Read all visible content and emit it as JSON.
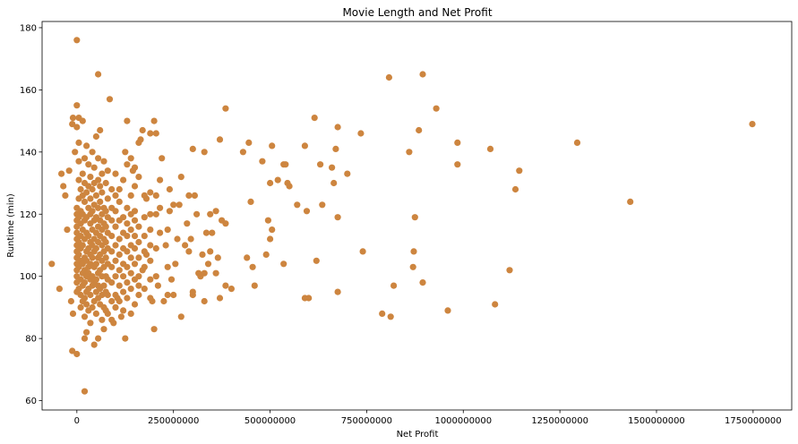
{
  "chart_data": {
    "type": "scatter",
    "title": "Movie Length and Net Profit",
    "xlabel": "Net Profit",
    "ylabel": "Runtime (min)",
    "xlim": [
      -90000000,
      1850000000
    ],
    "ylim": [
      57,
      182
    ],
    "xticks": [
      0,
      250000000,
      500000000,
      750000000,
      1000000000,
      1250000000,
      1500000000,
      1750000000
    ],
    "xtick_labels": [
      "0",
      "250000000",
      "500000000",
      "750000000",
      "1000000000",
      "1250000000",
      "1500000000",
      "1750000000"
    ],
    "yticks": [
      60,
      80,
      100,
      120,
      140,
      160,
      180
    ],
    "ytick_labels": [
      "60",
      "80",
      "100",
      "120",
      "140",
      "160",
      "180"
    ],
    "marker_color": "#cd853f",
    "grid": false,
    "points": [
      [
        0,
        176
      ],
      [
        55000000,
        165
      ],
      [
        85000000,
        157
      ],
      [
        0,
        155
      ],
      [
        -10000000,
        151
      ],
      [
        5000000,
        151
      ],
      [
        15000000,
        150
      ],
      [
        -12000000,
        149
      ],
      [
        0,
        148
      ],
      [
        130000000,
        150
      ],
      [
        200000000,
        150
      ],
      [
        170000000,
        147
      ],
      [
        190000000,
        146
      ],
      [
        205000000,
        146
      ],
      [
        160000000,
        143
      ],
      [
        165000000,
        144
      ],
      [
        130000000,
        136
      ],
      [
        145000000,
        134
      ],
      [
        150000000,
        135
      ],
      [
        100000000,
        133
      ],
      [
        90000000,
        128
      ],
      [
        110000000,
        128
      ],
      [
        125000000,
        140
      ],
      [
        140000000,
        138
      ],
      [
        120000000,
        131
      ],
      [
        180000000,
        125
      ],
      [
        220000000,
        138
      ],
      [
        215000000,
        131
      ],
      [
        240000000,
        128
      ],
      [
        250000000,
        123
      ],
      [
        270000000,
        132
      ],
      [
        300000000,
        141
      ],
      [
        330000000,
        140
      ],
      [
        370000000,
        144
      ],
      [
        385000000,
        154
      ],
      [
        290000000,
        126
      ],
      [
        305000000,
        126
      ],
      [
        310000000,
        120
      ],
      [
        345000000,
        120
      ],
      [
        335000000,
        114
      ],
      [
        360000000,
        121
      ],
      [
        375000000,
        118
      ],
      [
        385000000,
        117
      ],
      [
        430000000,
        140
      ],
      [
        445000000,
        143
      ],
      [
        450000000,
        124
      ],
      [
        480000000,
        137
      ],
      [
        500000000,
        130
      ],
      [
        505000000,
        142
      ],
      [
        520000000,
        131
      ],
      [
        535000000,
        136
      ],
      [
        540000000,
        136
      ],
      [
        545000000,
        130
      ],
      [
        550000000,
        129
      ],
      [
        570000000,
        123
      ],
      [
        590000000,
        142
      ],
      [
        595000000,
        121
      ],
      [
        615000000,
        151
      ],
      [
        630000000,
        136
      ],
      [
        635000000,
        123
      ],
      [
        660000000,
        135
      ],
      [
        665000000,
        130
      ],
      [
        670000000,
        141
      ],
      [
        675000000,
        148
      ],
      [
        700000000,
        133
      ],
      [
        735000000,
        146
      ],
      [
        860000000,
        140
      ],
      [
        885000000,
        147
      ],
      [
        930000000,
        154
      ],
      [
        895000000,
        165
      ],
      [
        808000000,
        164
      ],
      [
        985000000,
        143
      ],
      [
        985000000,
        136
      ],
      [
        1070000000,
        141
      ],
      [
        1295000000,
        143
      ],
      [
        1135000000,
        128
      ],
      [
        1145000000,
        134
      ],
      [
        1432000000,
        124
      ],
      [
        1748000000,
        149
      ],
      [
        1120000000,
        102
      ],
      [
        1082000000,
        91
      ],
      [
        960000000,
        89
      ],
      [
        895000000,
        98
      ],
      [
        872000000,
        108
      ],
      [
        870000000,
        103
      ],
      [
        875000000,
        119
      ],
      [
        820000000,
        97
      ],
      [
        812000000,
        87
      ],
      [
        790000000,
        88
      ],
      [
        740000000,
        108
      ],
      [
        675000000,
        95
      ],
      [
        675000000,
        119
      ],
      [
        620000000,
        105
      ],
      [
        600000000,
        93
      ],
      [
        590000000,
        93
      ],
      [
        535000000,
        104
      ],
      [
        500000000,
        112
      ],
      [
        505000000,
        115
      ],
      [
        495000000,
        118
      ],
      [
        490000000,
        107
      ],
      [
        460000000,
        97
      ],
      [
        455000000,
        103
      ],
      [
        440000000,
        106
      ],
      [
        400000000,
        96
      ],
      [
        385000000,
        97
      ],
      [
        370000000,
        93
      ],
      [
        360000000,
        101
      ],
      [
        365000000,
        106
      ],
      [
        345000000,
        108
      ],
      [
        330000000,
        101
      ],
      [
        330000000,
        92
      ],
      [
        320000000,
        100
      ],
      [
        300000000,
        94
      ],
      [
        300000000,
        95
      ],
      [
        290000000,
        108
      ],
      [
        280000000,
        110
      ],
      [
        270000000,
        87
      ],
      [
        250000000,
        94
      ],
      [
        245000000,
        99
      ],
      [
        235000000,
        94
      ],
      [
        230000000,
        110
      ],
      [
        225000000,
        92
      ],
      [
        210000000,
        97
      ],
      [
        200000000,
        83
      ],
      [
        195000000,
        92
      ],
      [
        190000000,
        105
      ],
      [
        180000000,
        107
      ],
      [
        170000000,
        102
      ],
      [
        160000000,
        97
      ],
      [
        150000000,
        104
      ],
      [
        140000000,
        88
      ],
      [
        125000000,
        80
      ],
      [
        115000000,
        87
      ],
      [
        105000000,
        93
      ],
      [
        95000000,
        85
      ],
      [
        80000000,
        88
      ],
      [
        70000000,
        83
      ],
      [
        55000000,
        80
      ],
      [
        45000000,
        78
      ],
      [
        35000000,
        85
      ],
      [
        25000000,
        82
      ],
      [
        20000000,
        80
      ],
      [
        -12000000,
        76
      ],
      [
        0,
        75
      ],
      [
        20000000,
        63
      ],
      [
        -65000000,
        104
      ],
      [
        -45000000,
        96
      ],
      [
        -40000000,
        133
      ],
      [
        -35000000,
        129
      ],
      [
        -30000000,
        126
      ],
      [
        -25000000,
        115
      ],
      [
        -20000000,
        134
      ],
      [
        -15000000,
        92
      ],
      [
        -10000000,
        88
      ],
      [
        -5000000,
        140
      ],
      [
        0,
        95
      ],
      [
        0,
        98
      ],
      [
        0,
        100
      ],
      [
        0,
        102
      ],
      [
        0,
        104
      ],
      [
        0,
        106
      ],
      [
        0,
        108
      ],
      [
        0,
        110
      ],
      [
        0,
        112
      ],
      [
        0,
        114
      ],
      [
        0,
        116
      ],
      [
        0,
        118
      ],
      [
        0,
        120
      ],
      [
        0,
        122
      ],
      [
        5000000,
        96
      ],
      [
        5000000,
        103
      ],
      [
        5000000,
        107
      ],
      [
        5000000,
        111
      ],
      [
        5000000,
        119
      ],
      [
        5000000,
        125
      ],
      [
        5000000,
        131
      ],
      [
        5000000,
        137
      ],
      [
        5000000,
        143
      ],
      [
        10000000,
        90
      ],
      [
        10000000,
        94
      ],
      [
        10000000,
        99
      ],
      [
        10000000,
        105
      ],
      [
        10000000,
        109
      ],
      [
        10000000,
        113
      ],
      [
        10000000,
        117
      ],
      [
        10000000,
        121
      ],
      [
        10000000,
        128
      ],
      [
        15000000,
        92
      ],
      [
        15000000,
        97
      ],
      [
        15000000,
        101
      ],
      [
        15000000,
        104
      ],
      [
        15000000,
        110
      ],
      [
        15000000,
        115
      ],
      [
        15000000,
        120
      ],
      [
        15000000,
        126
      ],
      [
        15000000,
        133
      ],
      [
        20000000,
        87
      ],
      [
        20000000,
        93
      ],
      [
        20000000,
        98
      ],
      [
        20000000,
        102
      ],
      [
        20000000,
        106
      ],
      [
        20000000,
        112
      ],
      [
        20000000,
        118
      ],
      [
        20000000,
        124
      ],
      [
        20000000,
        130
      ],
      [
        20000000,
        138
      ],
      [
        25000000,
        91
      ],
      [
        25000000,
        95
      ],
      [
        25000000,
        100
      ],
      [
        25000000,
        105
      ],
      [
        25000000,
        108
      ],
      [
        25000000,
        114
      ],
      [
        25000000,
        119
      ],
      [
        25000000,
        127
      ],
      [
        25000000,
        142
      ],
      [
        30000000,
        89
      ],
      [
        30000000,
        96
      ],
      [
        30000000,
        101
      ],
      [
        30000000,
        103
      ],
      [
        30000000,
        109
      ],
      [
        30000000,
        113
      ],
      [
        30000000,
        122
      ],
      [
        30000000,
        129
      ],
      [
        30000000,
        136
      ],
      [
        35000000,
        94
      ],
      [
        35000000,
        99
      ],
      [
        35000000,
        104
      ],
      [
        35000000,
        107
      ],
      [
        35000000,
        111
      ],
      [
        35000000,
        117
      ],
      [
        35000000,
        120
      ],
      [
        35000000,
        125
      ],
      [
        35000000,
        132
      ],
      [
        40000000,
        90
      ],
      [
        40000000,
        97
      ],
      [
        40000000,
        100
      ],
      [
        40000000,
        106
      ],
      [
        40000000,
        110
      ],
      [
        40000000,
        115
      ],
      [
        40000000,
        121
      ],
      [
        40000000,
        128
      ],
      [
        40000000,
        140
      ],
      [
        45000000,
        92
      ],
      [
        45000000,
        98
      ],
      [
        45000000,
        103
      ],
      [
        45000000,
        108
      ],
      [
        45000000,
        112
      ],
      [
        45000000,
        118
      ],
      [
        45000000,
        123
      ],
      [
        45000000,
        130
      ],
      [
        45000000,
        135
      ],
      [
        50000000,
        88
      ],
      [
        50000000,
        95
      ],
      [
        50000000,
        99
      ],
      [
        50000000,
        104
      ],
      [
        50000000,
        109
      ],
      [
        50000000,
        114
      ],
      [
        50000000,
        119
      ],
      [
        50000000,
        126
      ],
      [
        50000000,
        145
      ],
      [
        55000000,
        93
      ],
      [
        55000000,
        97
      ],
      [
        55000000,
        101
      ],
      [
        55000000,
        106
      ],
      [
        55000000,
        111
      ],
      [
        55000000,
        116
      ],
      [
        55000000,
        122
      ],
      [
        55000000,
        131
      ],
      [
        55000000,
        138
      ],
      [
        60000000,
        91
      ],
      [
        60000000,
        96
      ],
      [
        60000000,
        102
      ],
      [
        60000000,
        107
      ],
      [
        60000000,
        113
      ],
      [
        60000000,
        118
      ],
      [
        60000000,
        124
      ],
      [
        60000000,
        129
      ],
      [
        60000000,
        147
      ],
      [
        65000000,
        86
      ],
      [
        65000000,
        94
      ],
      [
        65000000,
        100
      ],
      [
        65000000,
        105
      ],
      [
        65000000,
        110
      ],
      [
        65000000,
        115
      ],
      [
        65000000,
        120
      ],
      [
        65000000,
        127
      ],
      [
        65000000,
        133
      ],
      [
        70000000,
        90
      ],
      [
        70000000,
        97
      ],
      [
        70000000,
        103
      ],
      [
        70000000,
        108
      ],
      [
        70000000,
        112
      ],
      [
        70000000,
        117
      ],
      [
        70000000,
        122
      ],
      [
        70000000,
        137
      ],
      [
        75000000,
        89
      ],
      [
        75000000,
        95
      ],
      [
        75000000,
        100
      ],
      [
        75000000,
        106
      ],
      [
        75000000,
        111
      ],
      [
        75000000,
        116
      ],
      [
        75000000,
        121
      ],
      [
        75000000,
        130
      ],
      [
        80000000,
        94
      ],
      [
        80000000,
        99
      ],
      [
        80000000,
        104
      ],
      [
        80000000,
        109
      ],
      [
        80000000,
        114
      ],
      [
        80000000,
        119
      ],
      [
        80000000,
        125
      ],
      [
        80000000,
        134
      ],
      [
        90000000,
        86
      ],
      [
        90000000,
        92
      ],
      [
        90000000,
        98
      ],
      [
        90000000,
        103
      ],
      [
        90000000,
        108
      ],
      [
        90000000,
        113
      ],
      [
        90000000,
        118
      ],
      [
        90000000,
        122
      ],
      [
        100000000,
        90
      ],
      [
        100000000,
        94
      ],
      [
        100000000,
        100
      ],
      [
        100000000,
        105
      ],
      [
        100000000,
        110
      ],
      [
        100000000,
        116
      ],
      [
        100000000,
        121
      ],
      [
        100000000,
        126
      ],
      [
        110000000,
        92
      ],
      [
        110000000,
        97
      ],
      [
        110000000,
        102
      ],
      [
        110000000,
        107
      ],
      [
        110000000,
        112
      ],
      [
        110000000,
        118
      ],
      [
        110000000,
        124
      ],
      [
        120000000,
        89
      ],
      [
        120000000,
        95
      ],
      [
        120000000,
        100
      ],
      [
        120000000,
        104
      ],
      [
        120000000,
        109
      ],
      [
        120000000,
        114
      ],
      [
        120000000,
        119
      ],
      [
        130000000,
        93
      ],
      [
        130000000,
        98
      ],
      [
        130000000,
        103
      ],
      [
        130000000,
        108
      ],
      [
        130000000,
        113
      ],
      [
        130000000,
        117
      ],
      [
        130000000,
        122
      ],
      [
        140000000,
        96
      ],
      [
        140000000,
        101
      ],
      [
        140000000,
        106
      ],
      [
        140000000,
        110
      ],
      [
        140000000,
        115
      ],
      [
        140000000,
        120
      ],
      [
        140000000,
        126
      ],
      [
        150000000,
        91
      ],
      [
        150000000,
        99
      ],
      [
        150000000,
        109
      ],
      [
        150000000,
        113
      ],
      [
        150000000,
        118
      ],
      [
        150000000,
        121
      ],
      [
        150000000,
        129
      ],
      [
        160000000,
        94
      ],
      [
        160000000,
        100
      ],
      [
        160000000,
        106
      ],
      [
        160000000,
        111
      ],
      [
        160000000,
        116
      ],
      [
        160000000,
        132
      ],
      [
        175000000,
        96
      ],
      [
        175000000,
        103
      ],
      [
        175000000,
        108
      ],
      [
        175000000,
        113
      ],
      [
        175000000,
        119
      ],
      [
        175000000,
        126
      ],
      [
        190000000,
        93
      ],
      [
        190000000,
        99
      ],
      [
        190000000,
        110
      ],
      [
        190000000,
        115
      ],
      [
        190000000,
        120
      ],
      [
        190000000,
        127
      ],
      [
        205000000,
        100
      ],
      [
        205000000,
        109
      ],
      [
        205000000,
        120
      ],
      [
        205000000,
        126
      ],
      [
        215000000,
        114
      ],
      [
        215000000,
        122
      ],
      [
        235000000,
        103
      ],
      [
        235000000,
        115
      ],
      [
        240000000,
        121
      ],
      [
        255000000,
        104
      ],
      [
        260000000,
        112
      ],
      [
        265000000,
        123
      ],
      [
        285000000,
        117
      ],
      [
        295000000,
        112
      ],
      [
        315000000,
        101
      ],
      [
        325000000,
        107
      ],
      [
        340000000,
        104
      ],
      [
        350000000,
        114
      ]
    ]
  }
}
